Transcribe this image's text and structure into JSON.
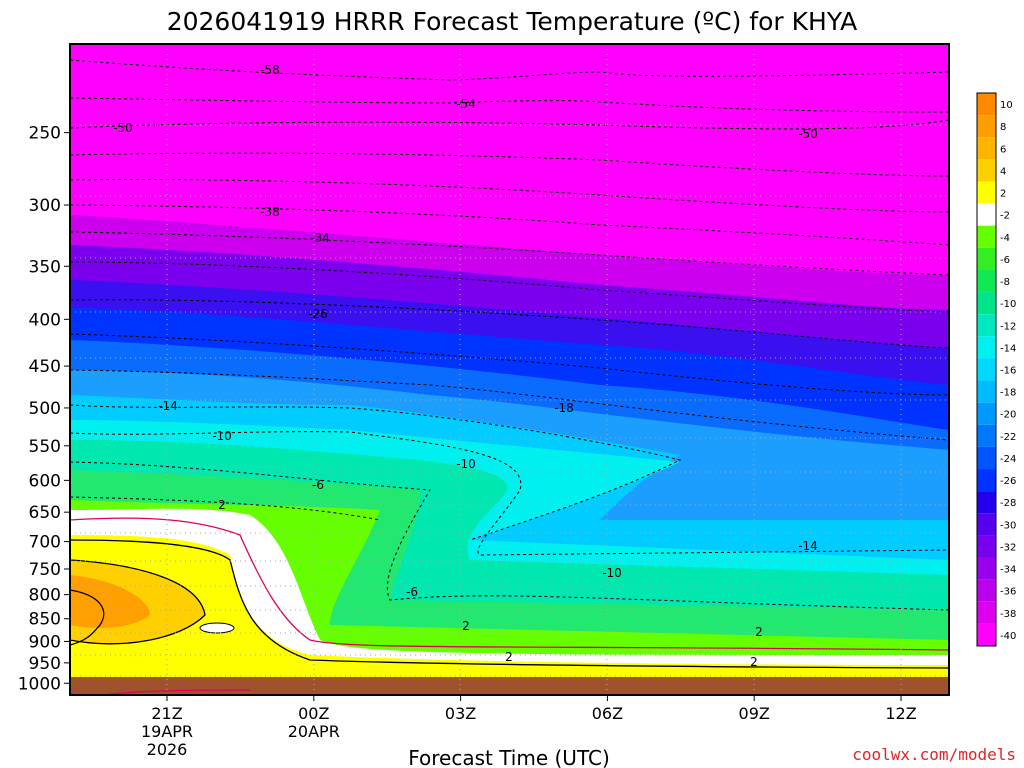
{
  "chart_data": {
    "type": "contour",
    "title": "2026041919 HRRR Forecast Temperature (ºC) for KHYA",
    "xlabel": "Forecast Time (UTC)",
    "ylabel": "",
    "x_ticks": [
      {
        "label": "21Z",
        "sub1": "19APR",
        "sub2": "2026"
      },
      {
        "label": "00Z",
        "sub1": "20APR",
        "sub2": ""
      },
      {
        "label": "03Z",
        "sub1": "",
        "sub2": ""
      },
      {
        "label": "06Z",
        "sub1": "",
        "sub2": ""
      },
      {
        "label": "09Z",
        "sub1": "",
        "sub2": ""
      },
      {
        "label": "12Z",
        "sub1": "",
        "sub2": ""
      }
    ],
    "y_ticks": [
      250,
      300,
      350,
      400,
      450,
      500,
      550,
      600,
      650,
      700,
      750,
      800,
      850,
      900,
      950,
      1000
    ],
    "y_axis": "pressure (log scale, inverted)",
    "ylim": [
      1030,
      200
    ],
    "contour_labels": [
      {
        "text": "-58",
        "level": 200
      },
      {
        "text": "-54",
        "level": 220
      },
      {
        "text": "-50",
        "level": 250
      },
      {
        "text": "-50",
        "level": 260
      },
      {
        "text": "-38",
        "level": 320
      },
      {
        "text": "-34",
        "level": 340
      },
      {
        "text": "-26",
        "level": 410
      },
      {
        "text": "-18",
        "level": 505
      },
      {
        "text": "-14",
        "level": 500
      },
      {
        "text": "-10",
        "level": 565
      },
      {
        "text": "-10",
        "level": 605
      },
      {
        "text": "-6",
        "level": 635
      },
      {
        "text": "2",
        "level": 660
      },
      {
        "text": "-6",
        "level": 825
      },
      {
        "text": "-10",
        "level": 790
      },
      {
        "text": "-14",
        "level": 720
      },
      {
        "text": "2",
        "level": 888
      },
      {
        "text": "2",
        "level": 905
      },
      {
        "text": "2",
        "level": 960
      },
      {
        "text": "2",
        "level": 975
      }
    ],
    "colorbar": {
      "ticks": [
        "10",
        "8",
        "6",
        "4",
        "2",
        "-2",
        "-4",
        "-6",
        "-8",
        "-10",
        "-12",
        "-14",
        "-16",
        "-18",
        "-20",
        "-22",
        "-24",
        "-26",
        "-28",
        "-30",
        "-32",
        "-34",
        "-36",
        "-38",
        "-40"
      ],
      "colors": [
        "#ff8a00",
        "#ff9e00",
        "#ffb400",
        "#ffd000",
        "#ffff00",
        "#ffffff",
        "#66ff00",
        "#33ee22",
        "#11e855",
        "#00e58a",
        "#00e8c0",
        "#00f0f0",
        "#00d8ff",
        "#00bbff",
        "#0099ff",
        "#0077ff",
        "#0055ff",
        "#0033ff",
        "#2200ee",
        "#5500ee",
        "#7700ee",
        "#9900ee",
        "#bb00ee",
        "#dd00ee",
        "#ff00ff"
      ]
    },
    "grid": true,
    "legend": "right"
  },
  "credit": "coolwx.com/models"
}
